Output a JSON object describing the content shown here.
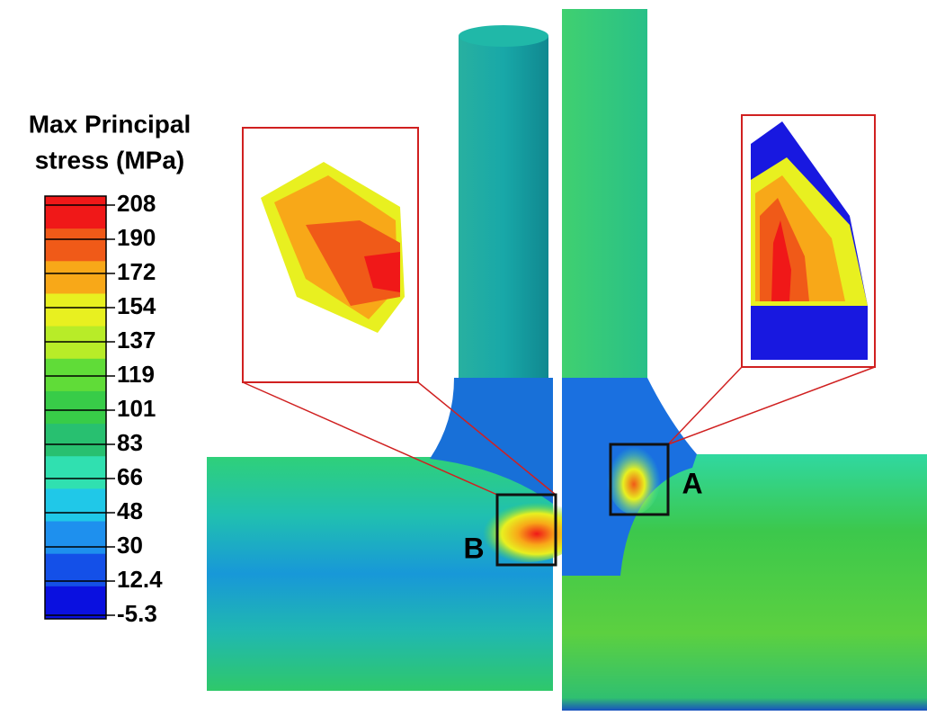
{
  "legend": {
    "title": [
      "Max Principal",
      "stress (MPa)"
    ],
    "ticks": [
      208,
      190,
      172,
      154,
      137,
      119,
      101,
      83,
      66,
      48,
      30,
      12.4,
      -5.3
    ],
    "colors": [
      "#f01818",
      "#f05a18",
      "#f8a818",
      "#e8f020",
      "#b8ec28",
      "#60dc38",
      "#38cc48",
      "#28c070",
      "#30e0b0",
      "#20c8e8",
      "#1e90ee",
      "#1450e8",
      "#0a10e0"
    ]
  },
  "labels": {
    "a": "A",
    "b": "B"
  }
}
